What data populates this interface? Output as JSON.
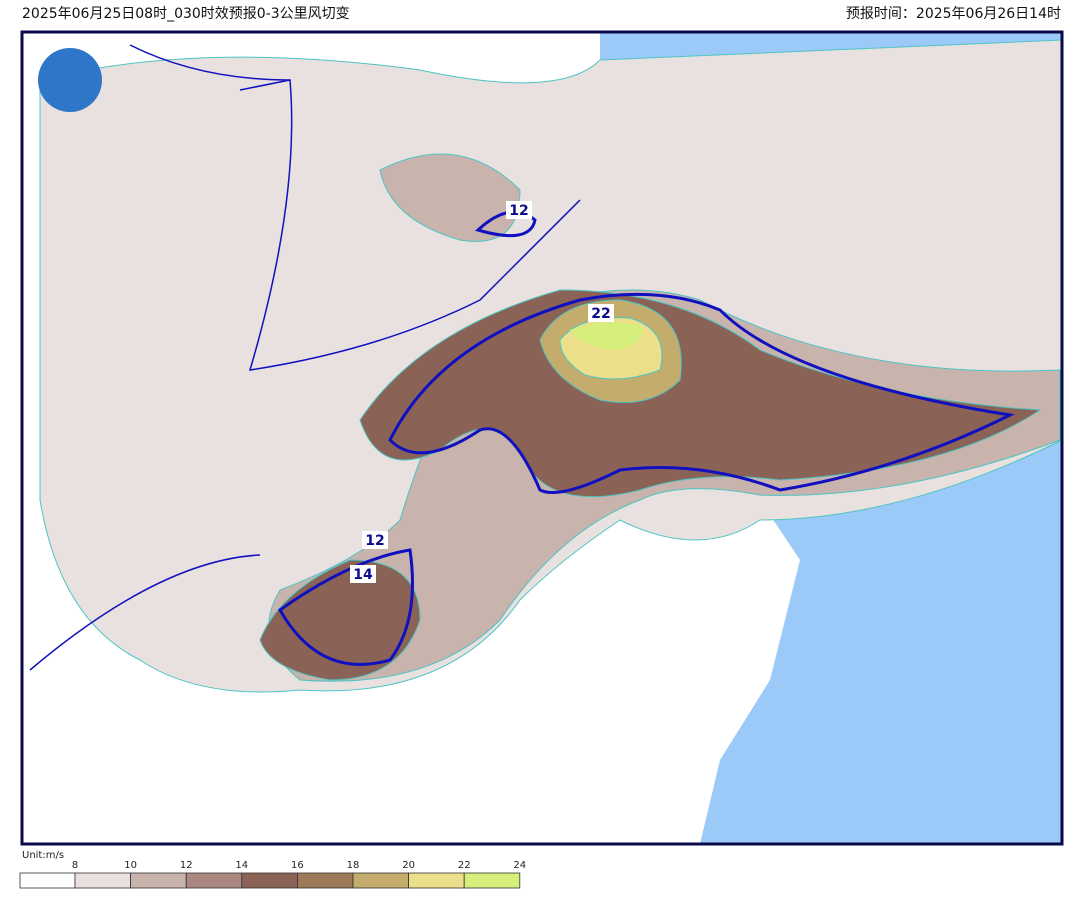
{
  "header": {
    "left": "2025年06月25日08时_030时效预报0-3公里风切变",
    "right": "预报时间：2025年06月26日14时"
  },
  "map": {
    "contour_labels": [
      "12",
      "22",
      "12",
      "14"
    ]
  },
  "legend": {
    "unit": "Unit:m/s",
    "levels": [
      8,
      10,
      12,
      14,
      16,
      18,
      20,
      22,
      24
    ],
    "colors": [
      "#ffffff",
      "#e9e1df",
      "#c8b4ad",
      "#a88880",
      "#8a6356",
      "#9c7a58",
      "#c4ad6c",
      "#ebdf8b",
      "#d6ef7c"
    ]
  }
}
